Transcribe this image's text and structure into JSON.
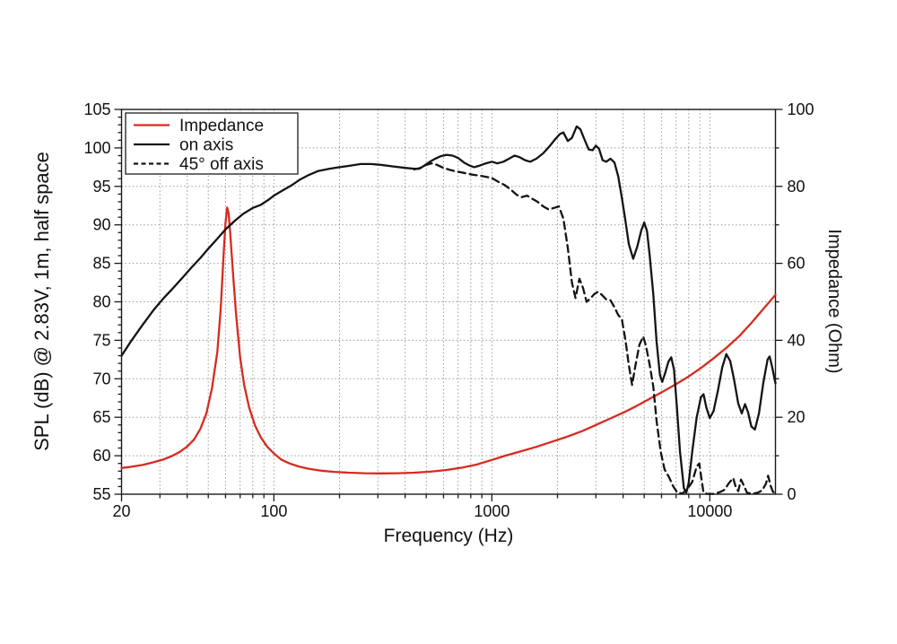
{
  "page": {
    "background": "#ffffff"
  },
  "chart_data": {
    "type": "line",
    "title": "",
    "xlabel": "Frequency (Hz)",
    "ylabel_left": "SPL (dB) @ 2.83V, 1m, half space",
    "ylabel_right": "Impedance (Ohm)",
    "x_scale": "log",
    "xlim": [
      20,
      20000
    ],
    "x_major_ticks": [
      20,
      100,
      1000,
      10000
    ],
    "x_major_labels": [
      "20",
      "100",
      "1000",
      "10000"
    ],
    "x_minor_ticks": [
      30,
      40,
      50,
      60,
      70,
      80,
      90,
      200,
      300,
      400,
      500,
      600,
      700,
      800,
      900,
      2000,
      3000,
      4000,
      5000,
      6000,
      7000,
      8000,
      9000
    ],
    "ylim_left": [
      55,
      105
    ],
    "y_major_left": [
      55,
      60,
      65,
      70,
      75,
      80,
      85,
      90,
      95,
      100,
      105
    ],
    "ylim_right": [
      0,
      100
    ],
    "y_major_right": [
      0,
      20,
      40,
      60,
      80,
      100
    ],
    "y_minor_right": [
      10,
      30,
      50,
      70,
      90
    ],
    "grid_y_spl": [
      60,
      65,
      70,
      75,
      80,
      85,
      90,
      95,
      100
    ],
    "grid_on": true,
    "legend_position": "top-left",
    "colors": {
      "impedance": "#d62b20",
      "curve_black": "#141414",
      "grid": "#9a9a9a",
      "frame": "#1a1a1a"
    },
    "legend": {
      "entries": [
        {
          "label": "Impedance",
          "color": "#d62b20",
          "style": "solid"
        },
        {
          "label": "on axis",
          "color": "#141414",
          "style": "solid"
        },
        {
          "label": "45° off axis",
          "color": "#141414",
          "style": "dashed"
        }
      ]
    },
    "series": [
      {
        "name": "Impedance",
        "axis": "right",
        "color": "#d62b20",
        "style": "solid",
        "points": [
          [
            20,
            6.8
          ],
          [
            22,
            7.1
          ],
          [
            25,
            7.6
          ],
          [
            28,
            8.3
          ],
          [
            31,
            9.0
          ],
          [
            34,
            9.9
          ],
          [
            37,
            11.0
          ],
          [
            40,
            12.4
          ],
          [
            43,
            14.2
          ],
          [
            46,
            17.0
          ],
          [
            49,
            21.0
          ],
          [
            52,
            27.5
          ],
          [
            55,
            37.0
          ],
          [
            57,
            48.0
          ],
          [
            59,
            64.0
          ],
          [
            60,
            70.5
          ],
          [
            61,
            74.5
          ],
          [
            62,
            73.0
          ],
          [
            63,
            68.0
          ],
          [
            65,
            57.0
          ],
          [
            67,
            47.0
          ],
          [
            70,
            35.5
          ],
          [
            73,
            28.5
          ],
          [
            77,
            22.5
          ],
          [
            82,
            17.8
          ],
          [
            87,
            14.8
          ],
          [
            93,
            12.4
          ],
          [
            100,
            10.6
          ],
          [
            108,
            9.0
          ],
          [
            118,
            8.0
          ],
          [
            130,
            7.2
          ],
          [
            145,
            6.6
          ],
          [
            165,
            6.1
          ],
          [
            190,
            5.8
          ],
          [
            220,
            5.6
          ],
          [
            260,
            5.45
          ],
          [
            310,
            5.4
          ],
          [
            370,
            5.45
          ],
          [
            440,
            5.6
          ],
          [
            520,
            5.85
          ],
          [
            620,
            6.3
          ],
          [
            730,
            6.9
          ],
          [
            850,
            7.7
          ],
          [
            1000,
            8.9
          ],
          [
            1150,
            10.0
          ],
          [
            1350,
            11.1
          ],
          [
            1600,
            12.3
          ],
          [
            1900,
            13.7
          ],
          [
            2200,
            14.9
          ],
          [
            2600,
            16.4
          ],
          [
            3000,
            18.0
          ],
          [
            3500,
            19.7
          ],
          [
            4000,
            21.2
          ],
          [
            4600,
            22.9
          ],
          [
            5300,
            24.8
          ],
          [
            6100,
            26.7
          ],
          [
            7000,
            28.6
          ],
          [
            8000,
            30.6
          ],
          [
            9200,
            33.0
          ],
          [
            10500,
            35.5
          ],
          [
            12000,
            38.2
          ],
          [
            13700,
            41.2
          ],
          [
            15500,
            44.5
          ],
          [
            17500,
            48.0
          ],
          [
            20000,
            51.8
          ]
        ]
      },
      {
        "name": "on axis",
        "axis": "left",
        "color": "#141414",
        "style": "solid",
        "points": [
          [
            20,
            73.0
          ],
          [
            22,
            74.8
          ],
          [
            25,
            77.0
          ],
          [
            28,
            78.9
          ],
          [
            31,
            80.4
          ],
          [
            34,
            81.6
          ],
          [
            38,
            83.1
          ],
          [
            42,
            84.5
          ],
          [
            46,
            85.7
          ],
          [
            50,
            86.9
          ],
          [
            55,
            88.2
          ],
          [
            60,
            89.4
          ],
          [
            66,
            90.5
          ],
          [
            72,
            91.4
          ],
          [
            80,
            92.2
          ],
          [
            87,
            92.6
          ],
          [
            95,
            93.3
          ],
          [
            100,
            93.8
          ],
          [
            110,
            94.5
          ],
          [
            120,
            95.1
          ],
          [
            132,
            95.9
          ],
          [
            145,
            96.5
          ],
          [
            160,
            97.0
          ],
          [
            180,
            97.3
          ],
          [
            200,
            97.5
          ],
          [
            225,
            97.7
          ],
          [
            250,
            97.9
          ],
          [
            280,
            97.9
          ],
          [
            310,
            97.8
          ],
          [
            350,
            97.6
          ],
          [
            400,
            97.4
          ],
          [
            440,
            97.3
          ],
          [
            465,
            97.3
          ],
          [
            490,
            97.7
          ],
          [
            520,
            98.2
          ],
          [
            550,
            98.6
          ],
          [
            580,
            98.9
          ],
          [
            620,
            99.1
          ],
          [
            660,
            99.0
          ],
          [
            700,
            98.7
          ],
          [
            745,
            98.1
          ],
          [
            790,
            97.7
          ],
          [
            830,
            97.5
          ],
          [
            880,
            97.7
          ],
          [
            940,
            98.0
          ],
          [
            1000,
            98.2
          ],
          [
            1060,
            98.0
          ],
          [
            1130,
            98.2
          ],
          [
            1200,
            98.6
          ],
          [
            1270,
            99.0
          ],
          [
            1340,
            98.8
          ],
          [
            1420,
            98.4
          ],
          [
            1500,
            98.2
          ],
          [
            1600,
            98.6
          ],
          [
            1720,
            99.3
          ],
          [
            1850,
            100.3
          ],
          [
            1960,
            101.2
          ],
          [
            2050,
            101.8
          ],
          [
            2130,
            102.0
          ],
          [
            2230,
            100.9
          ],
          [
            2330,
            101.3
          ],
          [
            2450,
            102.8
          ],
          [
            2550,
            102.4
          ],
          [
            2650,
            101.2
          ],
          [
            2780,
            99.8
          ],
          [
            2900,
            99.7
          ],
          [
            3000,
            100.3
          ],
          [
            3100,
            99.9
          ],
          [
            3220,
            98.4
          ],
          [
            3350,
            98.2
          ],
          [
            3500,
            98.6
          ],
          [
            3650,
            98.1
          ],
          [
            3800,
            96.3
          ],
          [
            3950,
            93.5
          ],
          [
            4100,
            90.5
          ],
          [
            4250,
            87.5
          ],
          [
            4450,
            85.6
          ],
          [
            4650,
            87.2
          ],
          [
            4850,
            89.3
          ],
          [
            5000,
            90.3
          ],
          [
            5150,
            89.2
          ],
          [
            5300,
            86.0
          ],
          [
            5500,
            81.0
          ],
          [
            5700,
            74.8
          ],
          [
            5900,
            70.5
          ],
          [
            6050,
            69.6
          ],
          [
            6250,
            70.8
          ],
          [
            6450,
            72.2
          ],
          [
            6650,
            72.8
          ],
          [
            6850,
            71.2
          ],
          [
            7050,
            66.5
          ],
          [
            7300,
            60.5
          ],
          [
            7600,
            55.8
          ],
          [
            7800,
            55.2
          ],
          [
            8000,
            56.5
          ],
          [
            8300,
            60.5
          ],
          [
            8700,
            65.0
          ],
          [
            9100,
            67.6
          ],
          [
            9350,
            68.0
          ],
          [
            9650,
            66.2
          ],
          [
            10000,
            64.9
          ],
          [
            10400,
            65.8
          ],
          [
            10900,
            68.5
          ],
          [
            11400,
            71.5
          ],
          [
            11900,
            73.2
          ],
          [
            12400,
            72.3
          ],
          [
            12900,
            70.0
          ],
          [
            13500,
            66.8
          ],
          [
            14000,
            65.5
          ],
          [
            14500,
            66.7
          ],
          [
            15000,
            65.6
          ],
          [
            15500,
            63.8
          ],
          [
            16100,
            63.4
          ],
          [
            16800,
            65.5
          ],
          [
            17600,
            69.5
          ],
          [
            18400,
            72.5
          ],
          [
            18800,
            72.9
          ],
          [
            19300,
            71.6
          ],
          [
            20000,
            69.4
          ]
        ]
      },
      {
        "name": "45° off axis",
        "axis": "left",
        "color": "#141414",
        "style": "dashed",
        "points": [
          [
            440,
            97.2
          ],
          [
            470,
            97.4
          ],
          [
            500,
            97.8
          ],
          [
            530,
            98.0
          ],
          [
            560,
            97.8
          ],
          [
            600,
            97.4
          ],
          [
            650,
            97.1
          ],
          [
            700,
            96.9
          ],
          [
            760,
            96.7
          ],
          [
            820,
            96.5
          ],
          [
            880,
            96.4
          ],
          [
            940,
            96.25
          ],
          [
            1000,
            96.1
          ],
          [
            1070,
            95.6
          ],
          [
            1140,
            95.2
          ],
          [
            1220,
            94.6
          ],
          [
            1300,
            93.9
          ],
          [
            1370,
            93.6
          ],
          [
            1450,
            93.8
          ],
          [
            1530,
            93.4
          ],
          [
            1620,
            93.0
          ],
          [
            1720,
            92.4
          ],
          [
            1820,
            92.0
          ],
          [
            1930,
            92.2
          ],
          [
            2030,
            92.4
          ],
          [
            2130,
            90.8
          ],
          [
            2230,
            87.0
          ],
          [
            2330,
            82.5
          ],
          [
            2420,
            80.5
          ],
          [
            2520,
            83.0
          ],
          [
            2620,
            81.8
          ],
          [
            2720,
            80.0
          ],
          [
            2820,
            80.4
          ],
          [
            2950,
            81.0
          ],
          [
            3070,
            81.3
          ],
          [
            3200,
            80.9
          ],
          [
            3350,
            80.3
          ],
          [
            3500,
            80.2
          ],
          [
            3650,
            79.3
          ],
          [
            3800,
            78.3
          ],
          [
            3950,
            77.7
          ],
          [
            4100,
            75.0
          ],
          [
            4250,
            71.8
          ],
          [
            4400,
            69.2
          ],
          [
            4550,
            71.6
          ],
          [
            4750,
            74.4
          ],
          [
            4950,
            75.5
          ],
          [
            5100,
            74.2
          ],
          [
            5300,
            71.8
          ],
          [
            5500,
            69.0
          ],
          [
            5700,
            64.5
          ],
          [
            5950,
            60.5
          ],
          [
            6200,
            58.2
          ],
          [
            6500,
            57.2
          ],
          [
            6800,
            56.0
          ],
          [
            7100,
            55.2
          ],
          [
            7500,
            55.1
          ],
          [
            7900,
            55.7
          ],
          [
            8300,
            56.6
          ],
          [
            8700,
            58.6
          ],
          [
            8950,
            59.0
          ],
          [
            9150,
            57.0
          ],
          [
            9350,
            55.2
          ],
          [
            9700,
            55.05
          ],
          [
            10500,
            55.05
          ],
          [
            11200,
            55.3
          ],
          [
            11700,
            55.6
          ],
          [
            12200,
            56.4
          ],
          [
            12800,
            57.1
          ],
          [
            13100,
            56.1
          ],
          [
            13500,
            55.4
          ],
          [
            13900,
            56.9
          ],
          [
            14400,
            56.0
          ],
          [
            14800,
            55.2
          ],
          [
            15600,
            55.05
          ],
          [
            16600,
            55.2
          ],
          [
            17400,
            55.5
          ],
          [
            18100,
            56.4
          ],
          [
            18500,
            57.4
          ],
          [
            19000,
            56.1
          ],
          [
            19500,
            55.3
          ],
          [
            20000,
            55.1
          ]
        ]
      }
    ]
  }
}
